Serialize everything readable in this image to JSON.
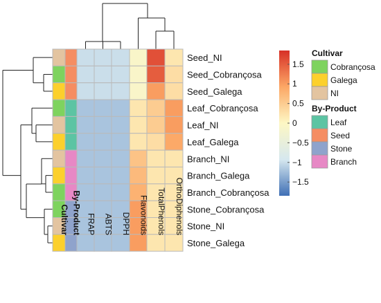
{
  "chart_data": {
    "type": "heatmap",
    "rows": [
      "Seed_NI",
      "Seed_Cobrançosa",
      "Seed_Galega",
      "Leaf_Cobrançosa",
      "Leaf_NI",
      "Leaf_Galega",
      "Branch_NI",
      "Branch_Galega",
      "Branch_Cobrançosa",
      "Stone_Cobrançosa",
      "Stone_NI",
      "Stone_Galega"
    ],
    "columns": [
      "FRAP",
      "ABTS",
      "DPPH",
      "Flavonoids",
      "TotalPhenols",
      "OrthoDiphenols"
    ],
    "values": [
      [
        -1.0,
        -1.0,
        -1.0,
        -0.1,
        1.6,
        0.2
      ],
      [
        -1.0,
        -1.0,
        -1.0,
        -0.1,
        1.5,
        0.3
      ],
      [
        -1.0,
        -1.0,
        -1.0,
        -0.1,
        1.0,
        0.3
      ],
      [
        -1.2,
        -1.2,
        -1.2,
        0.2,
        0.5,
        1.0
      ],
      [
        -1.2,
        -1.2,
        -1.2,
        0.2,
        0.5,
        1.0
      ],
      [
        -1.2,
        -1.2,
        -1.2,
        0.2,
        0.3,
        0.9
      ],
      [
        -1.2,
        -1.2,
        -1.2,
        0.6,
        0.2,
        0.2
      ],
      [
        -1.2,
        -1.2,
        -1.2,
        0.7,
        0.2,
        0.2
      ],
      [
        -1.2,
        -1.2,
        -1.2,
        0.8,
        0.2,
        0.2
      ],
      [
        -1.2,
        -1.2,
        -1.2,
        1.0,
        0.2,
        0.2
      ],
      [
        -1.2,
        -1.2,
        -1.2,
        1.0,
        0.2,
        0.2
      ],
      [
        -1.2,
        -1.2,
        -1.2,
        1.0,
        0.2,
        0.2
      ]
    ],
    "annotation_columns": [
      "Cultivar",
      "By-Product"
    ],
    "row_annotations": {
      "Cultivar": [
        "NI",
        "Cobrançosa",
        "Galega",
        "Cobrançosa",
        "NI",
        "Galega",
        "NI",
        "Galega",
        "Cobrançosa",
        "Cobrançosa",
        "NI",
        "Galega"
      ],
      "By-Product": [
        "Seed",
        "Seed",
        "Seed",
        "Leaf",
        "Leaf",
        "Leaf",
        "Branch",
        "Branch",
        "Branch",
        "Stone",
        "Stone",
        "Stone"
      ]
    },
    "colorbar": {
      "ticks": [
        1.5,
        1,
        0.5,
        0,
        -0.5,
        -1,
        -1.5
      ],
      "tick_labels": [
        "1.5",
        "1",
        "0.5",
        "0",
        "−0.5",
        "−1",
        "−1.5"
      ],
      "range": [
        -1.85,
        1.85
      ],
      "colors": [
        "#3f6fb5",
        "#d6e8ef",
        "#fdf7c4",
        "#fca765",
        "#d73027"
      ]
    },
    "legends": [
      {
        "title": "Cultivar",
        "entries": [
          {
            "label": "Cobrançosa",
            "color": "#7ed35e"
          },
          {
            "label": "Galega",
            "color": "#fcd02c"
          },
          {
            "label": "NI",
            "color": "#e3c4a0"
          }
        ]
      },
      {
        "title": "By-Product",
        "entries": [
          {
            "label": "Leaf",
            "color": "#5cc4a3"
          },
          {
            "label": "Seed",
            "color": "#f58d62"
          },
          {
            "label": "Stone",
            "color": "#8fa3cc"
          },
          {
            "label": "Branch",
            "color": "#e788c5"
          }
        ]
      }
    ],
    "grid": true,
    "legend_position": "right"
  }
}
